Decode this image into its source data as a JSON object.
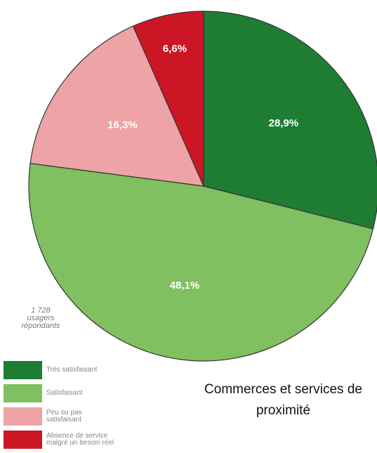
{
  "chart_data": {
    "type": "pie",
    "title": "Commerces et services de proximité",
    "annotation": [
      "1 728",
      "usagers",
      "répondants"
    ],
    "series": [
      {
        "name": "Très satisfaisant",
        "color": "#1e7d33",
        "values": [
          28.9
        ],
        "value_labels": [
          "28,9%"
        ]
      },
      {
        "name": "Satisfaisant",
        "color": "#80c060",
        "values": [
          48.1
        ],
        "value_labels": [
          "48,1%"
        ]
      },
      {
        "name": "Peu ou pas satisfaisant",
        "color": "#eea3a6",
        "values": [
          16.3
        ],
        "value_labels": [
          "16,3%"
        ]
      },
      {
        "name": "Absence de service malgré un besoin réel",
        "color": "#cc1626",
        "values": [
          6.6
        ],
        "value_labels": [
          "6,6%"
        ]
      }
    ],
    "legend": "bottom-left"
  }
}
